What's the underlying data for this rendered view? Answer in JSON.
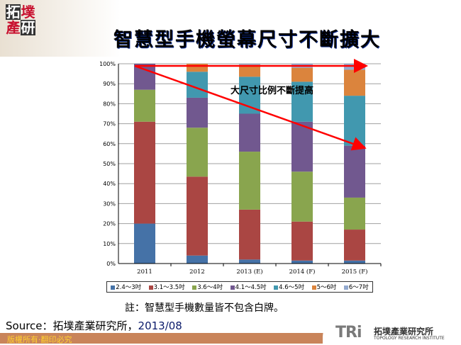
{
  "logo": {
    "chars": [
      "拓",
      "墣",
      "產",
      "研"
    ]
  },
  "title": "智慧型手機螢幕尺寸不斷擴大",
  "chart_data": {
    "type": "bar",
    "stacked": true,
    "percent": true,
    "categories": [
      "2011",
      "2012",
      "2013 (E)",
      "2014 (F)",
      "2015 (F)"
    ],
    "yticks": [
      "0%",
      "10%",
      "20%",
      "30%",
      "40%",
      "50%",
      "60%",
      "70%",
      "80%",
      "90%",
      "100%"
    ],
    "ylim": [
      0,
      100
    ],
    "grid": true,
    "legend_position": "bottom",
    "series": [
      {
        "name": "2.4～3吋",
        "color": "#4572a7",
        "values": [
          20,
          4,
          2,
          1.5,
          1.5
        ]
      },
      {
        "name": "3.1～3.5吋",
        "color": "#aa4643",
        "values": [
          51,
          39.5,
          25,
          19.5,
          15.5
        ]
      },
      {
        "name": "3.6～4吋",
        "color": "#89a54e",
        "values": [
          16,
          24.5,
          29,
          25,
          16
        ]
      },
      {
        "name": "4.1～4.5吋",
        "color": "#71588f",
        "values": [
          13,
          15,
          19,
          25,
          26
        ]
      },
      {
        "name": "4.6～5吋",
        "color": "#4198af",
        "values": [
          0,
          13,
          18.5,
          20,
          25
        ]
      },
      {
        "name": "5～6吋",
        "color": "#db843d",
        "values": [
          0,
          4,
          6,
          7,
          13
        ]
      },
      {
        "name": "6～7吋",
        "color": "#93a9cf",
        "values": [
          0,
          0,
          0.5,
          2,
          3
        ]
      }
    ],
    "annotation": "大尺寸比例不斷提高"
  },
  "note": "註：智慧型手機數量皆不包含白牌。",
  "source": {
    "label": "Source：拓墣產業研究所，",
    "date": "2013/08"
  },
  "footer": {
    "copyright": "版權所有‧翻印必究"
  },
  "brand": {
    "mark": "TRi",
    "name_cn": "拓墣產業研究所",
    "name_en": "TOPOLOGY RESEARCH INSTITUTE"
  }
}
